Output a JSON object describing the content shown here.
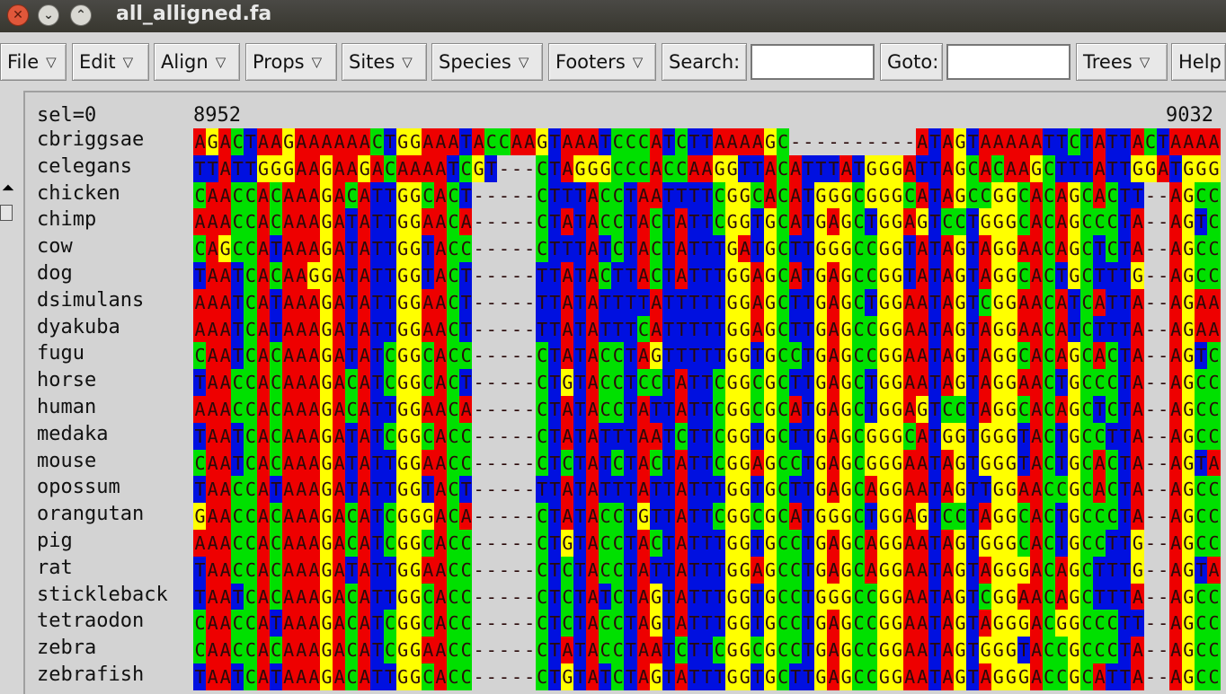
{
  "window": {
    "title": "all_alligned.fa",
    "close_glyph": "✕",
    "minimize_glyph": "⌄",
    "maximize_glyph": "⌃"
  },
  "menubar": {
    "file": "File",
    "edit": "Edit",
    "align": "Align",
    "props": "Props",
    "sites": "Sites",
    "species": "Species",
    "footers": "Footers",
    "search_label": "Search:",
    "search_value": "",
    "goto_label": "Goto:",
    "goto_value": "",
    "trees": "Trees",
    "help": "Help",
    "dropdown_glyph": "▽"
  },
  "alignment": {
    "selection_label": "sel=0",
    "start_position": "8952",
    "end_position": "9032",
    "colors": {
      "A": "#ee0000",
      "C": "#00e000",
      "G": "#ffff00",
      "T": "#0010e0",
      "gap": "#d3d3d3"
    },
    "species": [
      {
        "name": "cbriggsae",
        "seq": "AGACTAAGAAAAAACTGGAAATACCAAGTAAATCCCATCTTAAAAGC----------ATAGTAAAAATTCTATTACTAAAA"
      },
      {
        "name": "celegans",
        "seq": "TTATTGGGAAGAAGACAAAATCGT---CTAGGGCCCACCAAGGTTACATTTATGGGATTAGCACAAGCTTTATTGGATGGG"
      },
      {
        "name": "chicken",
        "seq": "CAACCACAAAGACATTGGCACT-----CTTTACCTAATTTTCGGCACATGGGCGGGCATAGCCGGCACAGCACTT--AGCC"
      },
      {
        "name": "chimp",
        "seq": "AAACCACAAAGATATTGGAACA-----CTATACCTACTATTCGGTGCATGAGCTGGAGTCCTGGGCACAGCCCTA--AGTC"
      },
      {
        "name": "cow",
        "seq": "CAGCCATAAAGATATTGGTACC-----CTTTATCTACTATTTGATGCTTGGGCCGGTATAGTAGGAACAGCTCTA--AGCC"
      },
      {
        "name": "dog",
        "seq": "TAATCACAAGGATATTGGTACT-----TTATACTTACTATTTGGAGCATGAGCCGGTATAGTAGGCACTGCTTTG--AGCC"
      },
      {
        "name": "dsimulans",
        "seq": "AAATCATAAAGATATTGGAACT-----TTATATTTTATTTTTGGAGCTTGAGCTGGAATAGTCGGAACATCATTA--AGAA"
      },
      {
        "name": "dyakuba",
        "seq": "AAATCATAAAGATATTGGAACT-----TTATATTTCATTTTTGGAGCTTGAGCCGGAATAGTAGGAACATCTTTA--AGAA"
      },
      {
        "name": "fugu",
        "seq": "CAATCACAAAGATATCGGCACC-----CTATACCTAGTTTTTGGTGCCTGAGCCGGAATAGTAGGCACAGCACTA--AGTC"
      },
      {
        "name": "horse",
        "seq": "TAACCACAAAGACATCGGCACT-----CTGTACCTCCTATTCGGCGCTTGAGCTGGAATAGTAGGAACTGCCCTA--AGCC"
      },
      {
        "name": "human",
        "seq": "AAACCACAAAGACATTGGAACA-----CTATACCTATTATTCGGCGCATGAGCTGGAGTCCTAGGCACAGCTCTA--AGCC"
      },
      {
        "name": "medaka",
        "seq": "TAATCACAAAGATATCGGCACC-----CTATATTTAATCTTCGGTGCTTGAGCGGGCATGGTGGGTACTGCCTTA--AGCC"
      },
      {
        "name": "mouse",
        "seq": "CAATCACAAAGATATTGGAACC-----CTCTATCTACTATTCGGAGCCTGAGCGGGAATAGTGGGTACTGCACTA--AGTA"
      },
      {
        "name": "opossum",
        "seq": "TAACCATAAAGATATTGGTACT-----TTATATTTATTATTTGGTGCTTGAGCAGGAATAGTTGGAACCGCACTA--AGCC"
      },
      {
        "name": "orangutan",
        "seq": "GAACCACAAAGACATCGGGACA-----CTATACCTGTTATTCGGCGCATGGGCTGGAGTCCTAGGCACTGCCCTA--AGCC"
      },
      {
        "name": "pig",
        "seq": "AAACCACAAAGACATCGGCACC-----CTGTACCTACTATTTGGTGCCTGAGCAGGAATAGTGGGCACTGCCTTG--AGCC"
      },
      {
        "name": "rat",
        "seq": "TAACCACAAAGATATTGGAACC-----CTCTACCTATTATTTGGAGCCTGAGCAGGAATAGTAGGGACAGCTTTG--AGTA"
      },
      {
        "name": "stickleback",
        "seq": "TAATCACAAAGACATTGGCACC-----CTCTATCTAGTATTTGGTGCCTGGGCCGGAATAGTCGGAACAGCTTTA--AGCC"
      },
      {
        "name": "tetraodon",
        "seq": "CAACCATAAAGACATCGGCACC-----CTCTACCTAGTATTTGGTGCCTGAGCCGGAATAGTAGGGACGGCCCTT--AGCC"
      },
      {
        "name": "zebra",
        "seq": "CAACCACAAAGACATCGGAACC-----CTATACCTAATCTTCGGCGCCTGAGCCGGAATAGTGGGTACCGCCCTA--AGCC"
      },
      {
        "name": "zebrafish",
        "seq": "TAATCATAAAGACATTGGCACC-----CTGTATCTAGTATTTGGTGCTTGAGCCGGAATAGTAGGGACCGCATTA--AGCC"
      }
    ]
  }
}
